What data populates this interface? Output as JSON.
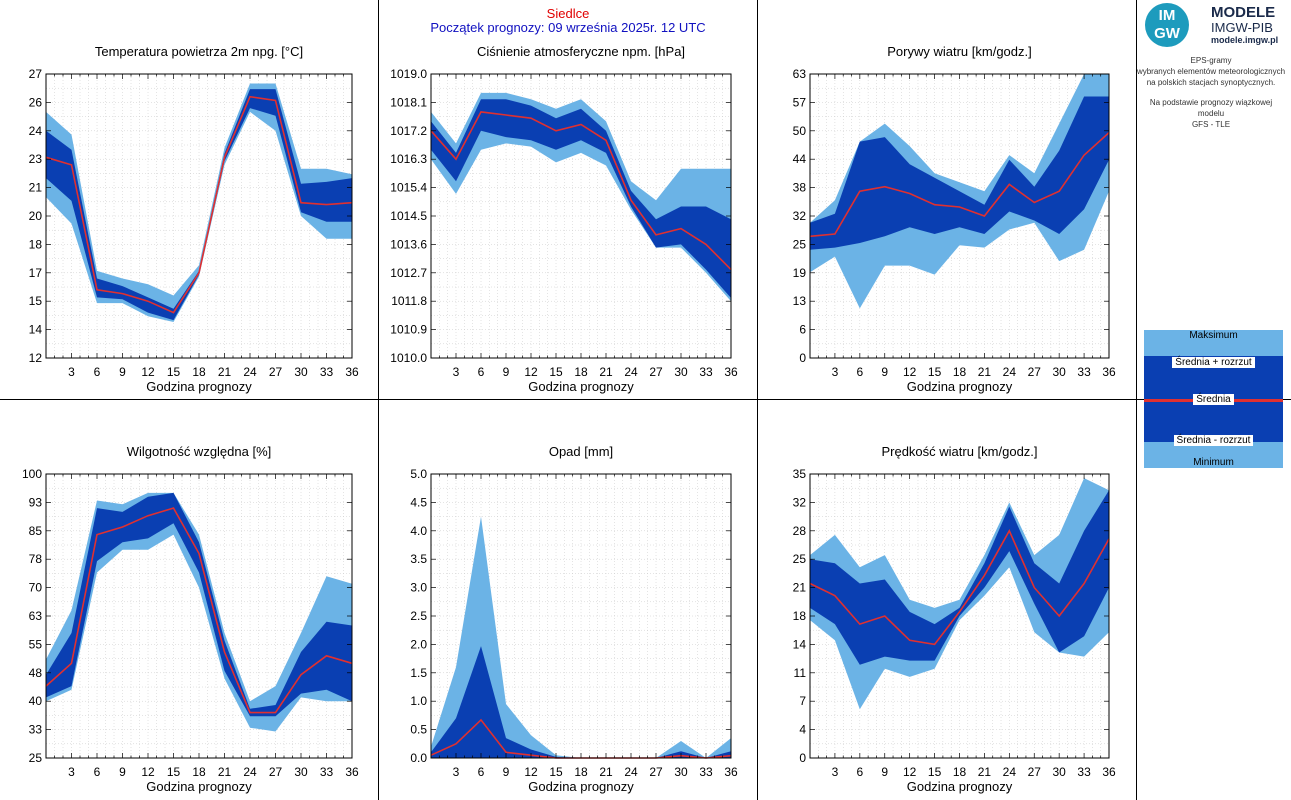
{
  "header": {
    "station": "Siedlce",
    "start_text": "Początek prognozy: 09 września 2025r. 12 UTC"
  },
  "logo": {
    "badge_top": "IM",
    "badge_bottom": "GW",
    "line1": "MODELE",
    "line2": "IMGW-PIB",
    "line3": "modele.imgw.pl"
  },
  "info": {
    "line1": "EPS-gramy",
    "line2": "wybranych elementów meteorologicznych",
    "line3": "na polskich stacjach  synoptycznych.",
    "line4": "Na podstawie prognozy wiązkowej modelu",
    "line5": "GFS - TLE"
  },
  "legend": {
    "max": "Maksimum",
    "mean_plus": "Średnia + rozrzut",
    "mean": "Średnia",
    "mean_minus": "Średnia - rozrzut",
    "min": "Minimum"
  },
  "colors": {
    "outer_band": "#6bb3e6",
    "inner_band": "#0a3fb2",
    "mean_line": "#e03030",
    "grid": "#c8c8c8",
    "divider": "#000000"
  },
  "chart_data": [
    {
      "type": "area",
      "title": "Temperatura powietrza 2m npg. [°C]",
      "xlabel": "Godzina prognozy",
      "ylabel": "",
      "x": [
        0,
        3,
        6,
        9,
        12,
        15,
        18,
        21,
        24,
        27,
        30,
        33,
        36
      ],
      "xticks": [
        "3",
        "6",
        "9",
        "12",
        "15",
        "18",
        "21",
        "24",
        "27",
        "30",
        "33",
        "36"
      ],
      "yticks": [
        "12",
        "14",
        "15",
        "17",
        "18",
        "20",
        "21",
        "23",
        "24",
        "26",
        "27"
      ],
      "ylim": [
        12,
        27
      ],
      "series": [
        {
          "name": "Maksimum",
          "values": [
            25.0,
            23.8,
            16.6,
            16.2,
            15.9,
            15.3,
            16.9,
            23.1,
            26.5,
            26.5,
            22.0,
            22.0,
            21.7
          ]
        },
        {
          "name": "Średnia + rozrzut",
          "values": [
            24.0,
            23.0,
            16.2,
            15.8,
            15.2,
            14.6,
            16.6,
            22.8,
            26.2,
            26.2,
            21.2,
            21.3,
            21.5
          ]
        },
        {
          "name": "Średnia",
          "values": [
            22.6,
            22.2,
            15.6,
            15.4,
            15.0,
            14.4,
            16.5,
            22.6,
            25.8,
            25.6,
            20.2,
            20.1,
            20.2
          ]
        },
        {
          "name": "Średnia - rozrzut",
          "values": [
            21.5,
            20.3,
            15.2,
            15.1,
            14.4,
            14.0,
            16.4,
            22.4,
            25.2,
            24.8,
            19.7,
            19.2,
            19.2
          ]
        },
        {
          "name": "Minimum",
          "values": [
            20.5,
            19.1,
            14.9,
            14.9,
            14.2,
            13.9,
            16.3,
            22.2,
            25.0,
            24.0,
            19.5,
            18.3,
            18.3
          ]
        }
      ]
    },
    {
      "type": "area",
      "title": "Ciśnienie atmosferyczne npm. [hPa]",
      "xlabel": "Godzina prognozy",
      "ylabel": "",
      "x": [
        0,
        3,
        6,
        9,
        12,
        15,
        18,
        21,
        24,
        27,
        30,
        33,
        36
      ],
      "xticks": [
        "3",
        "6",
        "9",
        "12",
        "15",
        "18",
        "21",
        "24",
        "27",
        "30",
        "33",
        "36"
      ],
      "yticks": [
        "1010.0",
        "1010.9",
        "1011.8",
        "1012.7",
        "1013.6",
        "1014.5",
        "1015.4",
        "1016.3",
        "1017.2",
        "1018.1",
        "1019.0"
      ],
      "ylim": [
        1010.0,
        1019.0
      ],
      "series": [
        {
          "name": "Maksimum",
          "values": [
            1017.8,
            1016.8,
            1018.4,
            1018.4,
            1018.2,
            1017.9,
            1018.2,
            1017.5,
            1015.6,
            1015.0,
            1016.0,
            1016.0,
            1016.0
          ]
        },
        {
          "name": "Średnia + rozrzut",
          "values": [
            1017.5,
            1016.5,
            1018.2,
            1018.2,
            1018.0,
            1017.6,
            1017.9,
            1017.2,
            1015.3,
            1014.4,
            1014.8,
            1014.8,
            1014.4
          ]
        },
        {
          "name": "Średnia",
          "values": [
            1017.2,
            1016.3,
            1017.8,
            1017.7,
            1017.6,
            1017.2,
            1017.4,
            1016.9,
            1015.0,
            1013.9,
            1014.1,
            1013.6,
            1012.8
          ]
        },
        {
          "name": "Średnia - rozrzut",
          "values": [
            1016.6,
            1015.6,
            1017.2,
            1017.0,
            1016.9,
            1016.6,
            1016.9,
            1016.5,
            1014.8,
            1013.5,
            1013.6,
            1012.8,
            1011.9
          ]
        },
        {
          "name": "Minimum",
          "values": [
            1016.3,
            1015.2,
            1016.6,
            1016.8,
            1016.7,
            1016.2,
            1016.5,
            1016.1,
            1014.7,
            1013.5,
            1013.5,
            1012.7,
            1011.8
          ]
        }
      ]
    },
    {
      "type": "area",
      "title": "Porywy wiatru [km/godz.]",
      "xlabel": "Godzina prognozy",
      "ylabel": "",
      "x": [
        0,
        3,
        6,
        9,
        12,
        15,
        18,
        21,
        24,
        27,
        30,
        33,
        36
      ],
      "xticks": [
        "3",
        "6",
        "9",
        "12",
        "15",
        "18",
        "21",
        "24",
        "27",
        "30",
        "33",
        "36"
      ],
      "yticks": [
        "0",
        "6",
        "13",
        "19",
        "25",
        "32",
        "38",
        "44",
        "50",
        "57",
        "63"
      ],
      "ylim": [
        0,
        63
      ],
      "series": [
        {
          "name": "Maksimum",
          "values": [
            30,
            35,
            48,
            52,
            47,
            41,
            39,
            37,
            45,
            41,
            52,
            63,
            63
          ]
        },
        {
          "name": "Średnia + rozrzut",
          "values": [
            30,
            32,
            48,
            49,
            43,
            40,
            37,
            34,
            44,
            38,
            46,
            58,
            58
          ]
        },
        {
          "name": "Średnia",
          "values": [
            27,
            27.5,
            37,
            38,
            36.5,
            34,
            33.5,
            31.5,
            38.5,
            34.5,
            37,
            45,
            50
          ]
        },
        {
          "name": "Średnia - rozrzut",
          "values": [
            24,
            24.5,
            25.5,
            27,
            29,
            27.5,
            29,
            27.5,
            32.5,
            30.5,
            27.5,
            33,
            44
          ]
        },
        {
          "name": "Minimum",
          "values": [
            19,
            22.5,
            11,
            20.5,
            20.5,
            18.5,
            25,
            24.5,
            28.5,
            30,
            21.5,
            24,
            37
          ]
        }
      ]
    },
    {
      "type": "area",
      "title": "Wilgotność względna [%]",
      "xlabel": "Godzina prognozy",
      "ylabel": "",
      "x": [
        0,
        3,
        6,
        9,
        12,
        15,
        18,
        21,
        24,
        27,
        30,
        33,
        36
      ],
      "xticks": [
        "3",
        "6",
        "9",
        "12",
        "15",
        "18",
        "21",
        "24",
        "27",
        "30",
        "33",
        "36"
      ],
      "yticks": [
        "25",
        "33",
        "40",
        "48",
        "55",
        "63",
        "70",
        "78",
        "85",
        "93",
        "100"
      ],
      "ylim": [
        25,
        100
      ],
      "series": [
        {
          "name": "Maksimum",
          "values": [
            51,
            64,
            93,
            92,
            95,
            95,
            84,
            58,
            40,
            44,
            58,
            73,
            71
          ]
        },
        {
          "name": "Średnia + rozrzut",
          "values": [
            47,
            58,
            91,
            90,
            94,
            95,
            82,
            56,
            38,
            39,
            53,
            61,
            60
          ]
        },
        {
          "name": "Średnia",
          "values": [
            44,
            50,
            84,
            86,
            89,
            91,
            79,
            53,
            37,
            37,
            47,
            52,
            50
          ]
        },
        {
          "name": "Średnia - rozrzut",
          "values": [
            41,
            44,
            77,
            82,
            83,
            87,
            74,
            48,
            36,
            36,
            42,
            43,
            40
          ]
        },
        {
          "name": "Minimum",
          "values": [
            40,
            43,
            74,
            80,
            80,
            84,
            70,
            46,
            33,
            32,
            41,
            40,
            40
          ]
        }
      ]
    },
    {
      "type": "area",
      "title": "Opad [mm]",
      "xlabel": "Godzina prognozy",
      "ylabel": "",
      "x": [
        0,
        3,
        6,
        9,
        12,
        15,
        18,
        21,
        24,
        27,
        30,
        33,
        36
      ],
      "xticks": [
        "3",
        "6",
        "9",
        "12",
        "15",
        "18",
        "21",
        "24",
        "27",
        "30",
        "33",
        "36"
      ],
      "yticks": [
        "0.0",
        "0.5",
        "1.0",
        "1.5",
        "2.0",
        "2.5",
        "3.0",
        "3.5",
        "4.0",
        "4.5",
        "5.0"
      ],
      "ylim": [
        0,
        5
      ],
      "series": [
        {
          "name": "Maksimum",
          "values": [
            0.2,
            1.6,
            4.25,
            0.95,
            0.4,
            0.05,
            0.0,
            0.0,
            0.0,
            0.0,
            0.3,
            0.0,
            0.35
          ]
        },
        {
          "name": "Średnia + rozrzut",
          "values": [
            0.1,
            0.7,
            1.97,
            0.35,
            0.15,
            0.02,
            0.0,
            0.0,
            0.0,
            0.0,
            0.12,
            0.0,
            0.12
          ]
        },
        {
          "name": "Średnia",
          "values": [
            0.05,
            0.25,
            0.67,
            0.1,
            0.05,
            0.0,
            0.0,
            0.0,
            0.0,
            0.0,
            0.04,
            0.0,
            0.04
          ]
        },
        {
          "name": "Średnia - rozrzut",
          "values": [
            0.0,
            0.0,
            0.0,
            0.0,
            0.0,
            0.0,
            0.0,
            0.0,
            0.0,
            0.0,
            0.0,
            0.0,
            0.0
          ]
        },
        {
          "name": "Minimum",
          "values": [
            0.0,
            0.0,
            0.0,
            0.0,
            0.0,
            0.0,
            0.0,
            0.0,
            0.0,
            0.0,
            0.0,
            0.0,
            0.0
          ]
        }
      ]
    },
    {
      "type": "area",
      "title": "Prędkość wiatru [km/godz.]",
      "xlabel": "Godzina prognozy",
      "ylabel": "",
      "x": [
        0,
        3,
        6,
        9,
        12,
        15,
        18,
        21,
        24,
        27,
        30,
        33,
        36
      ],
      "xticks": [
        "3",
        "6",
        "9",
        "12",
        "15",
        "18",
        "21",
        "24",
        "27",
        "30",
        "33",
        "36"
      ],
      "yticks": [
        "0",
        "4",
        "7",
        "11",
        "14",
        "18",
        "21",
        "25",
        "28",
        "32",
        "35"
      ],
      "ylim": [
        0,
        35
      ],
      "series": [
        {
          "name": "Maksimum",
          "values": [
            25,
            27.5,
            23.5,
            25,
            19.5,
            18.5,
            19.5,
            25,
            31.5,
            25,
            27.5,
            34.5,
            33
          ]
        },
        {
          "name": "Średnia + rozrzut",
          "values": [
            24.5,
            24,
            21.5,
            22,
            18,
            16.5,
            18.5,
            24,
            31,
            24,
            21.5,
            28,
            33
          ]
        },
        {
          "name": "Średnia",
          "values": [
            21.5,
            20,
            16.5,
            17.5,
            14.5,
            14,
            18,
            22.5,
            28,
            21,
            17.5,
            21.5,
            27
          ]
        },
        {
          "name": "Średnia - rozrzut",
          "values": [
            18.5,
            16.5,
            11.5,
            12.5,
            12,
            12,
            17.5,
            21,
            25.5,
            19,
            13,
            15,
            21
          ]
        },
        {
          "name": "Minimum",
          "values": [
            17,
            14.5,
            6,
            11,
            10,
            11,
            17,
            20,
            23.5,
            15.5,
            13,
            12.5,
            15.5
          ]
        }
      ]
    }
  ]
}
